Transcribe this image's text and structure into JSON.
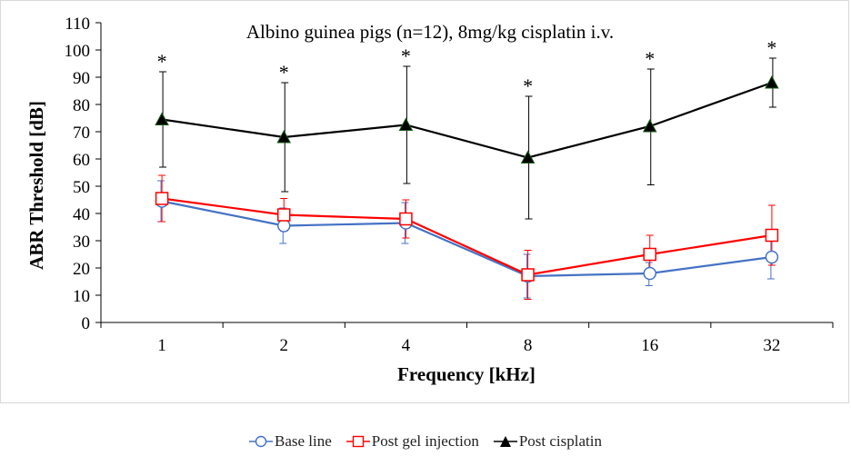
{
  "chart_data": {
    "type": "line",
    "title": "Albino guinea pigs (n=12), 8mg/kg cisplatin i.v.",
    "xlabel": "Frequency [kHz]",
    "ylabel": "ABR Threshold [dB]",
    "categories": [
      "1",
      "2",
      "4",
      "8",
      "16",
      "32"
    ],
    "ylim": [
      0,
      110
    ],
    "yticks": [
      0,
      10,
      20,
      30,
      40,
      50,
      60,
      70,
      80,
      90,
      100,
      110
    ],
    "grid": false,
    "legend_position": "bottom",
    "significance_marker": "*",
    "significant": [
      true,
      true,
      true,
      true,
      true,
      true
    ],
    "series": [
      {
        "name": "Base line",
        "color": "#4472c4",
        "marker": "circle",
        "values": [
          44.5,
          35.5,
          36.5,
          17,
          18,
          24
        ],
        "error_upper": [
          52,
          42,
          44,
          25,
          22,
          31
        ],
        "error_lower": [
          37,
          29,
          29,
          9,
          13.5,
          16
        ]
      },
      {
        "name": "Post gel injection",
        "color": "#ff0000",
        "marker": "square",
        "values": [
          45.5,
          39.5,
          38,
          17.5,
          25,
          32
        ],
        "error_upper": [
          54,
          45.5,
          45,
          26.5,
          32,
          43
        ],
        "error_lower": [
          37,
          33.5,
          31,
          8.5,
          18,
          21
        ]
      },
      {
        "name": "Post cisplatin",
        "color": "#000000",
        "marker": "triangle",
        "values": [
          74.5,
          68,
          72.5,
          60.5,
          72,
          88
        ],
        "error_upper": [
          92,
          88,
          94,
          83,
          93,
          97
        ],
        "error_lower": [
          57,
          48,
          51,
          38,
          50.5,
          79
        ]
      }
    ]
  }
}
